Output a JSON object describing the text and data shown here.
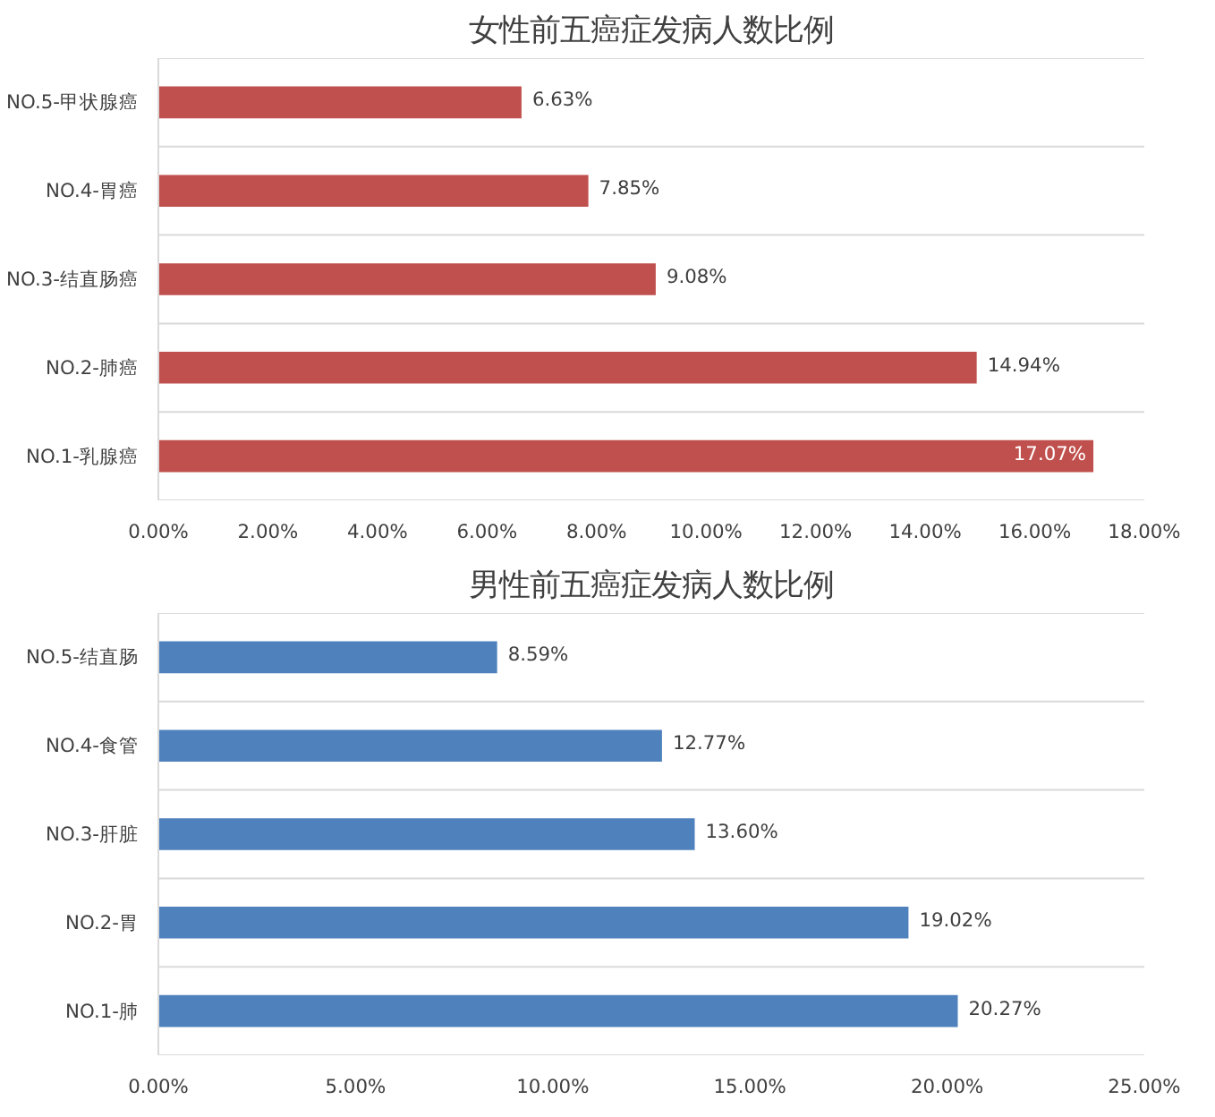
{
  "chart_data": [
    {
      "type": "bar",
      "orientation": "horizontal",
      "title": "女性前五癌症发病人数比例",
      "categories": [
        "NO.5-甲状腺癌",
        "NO.4-胃癌",
        "NO.3-结直肠癌",
        "NO.2-肺癌",
        "NO.1-乳腺癌"
      ],
      "values": [
        6.63,
        7.85,
        9.08,
        14.94,
        17.07
      ],
      "value_labels": [
        "6.63%",
        "7.85%",
        "9.08%",
        "14.94%",
        "17.07%"
      ],
      "color": "#c0504d",
      "xlim": [
        0,
        18
      ],
      "xticks": [
        {
          "value": 0,
          "label": "0.00%"
        },
        {
          "value": 2,
          "label": "2.00%"
        },
        {
          "value": 4,
          "label": "4.00%"
        },
        {
          "value": 6,
          "label": "6.00%"
        },
        {
          "value": 8,
          "label": "8.00%"
        },
        {
          "value": 10,
          "label": "10.00%"
        },
        {
          "value": 12,
          "label": "12.00%"
        },
        {
          "value": 14,
          "label": "14.00%"
        },
        {
          "value": 16,
          "label": "16.00%"
        },
        {
          "value": 18,
          "label": "18.00%"
        }
      ],
      "grid": "y"
    },
    {
      "type": "bar",
      "orientation": "horizontal",
      "title": "男性前五癌症发病人数比例",
      "categories": [
        "NO.5-结直肠",
        "NO.4-食管",
        "NO.3-肝脏",
        "NO.2-胃",
        "NO.1-肺"
      ],
      "values": [
        8.59,
        12.77,
        13.6,
        19.02,
        20.27
      ],
      "value_labels": [
        "8.59%",
        "12.77%",
        "13.60%",
        "19.02%",
        "20.27%"
      ],
      "color": "#4f81bd",
      "xlim": [
        0,
        25
      ],
      "xticks": [
        {
          "value": 0,
          "label": "0.00%"
        },
        {
          "value": 5,
          "label": "5.00%"
        },
        {
          "value": 10,
          "label": "10.00%"
        },
        {
          "value": 15,
          "label": "15.00%"
        },
        {
          "value": 20,
          "label": "20.00%"
        },
        {
          "value": 25,
          "label": "25.00%"
        }
      ],
      "grid": "y"
    }
  ]
}
